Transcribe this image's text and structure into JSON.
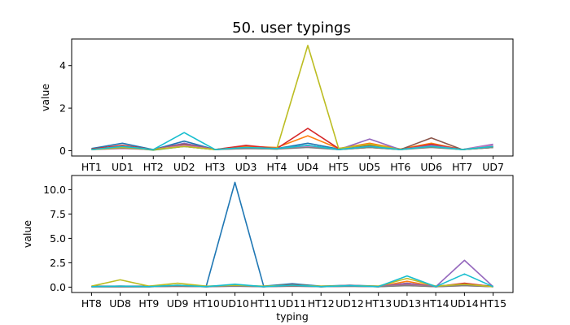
{
  "chart_data": {
    "type": "line",
    "title": "50. user typings",
    "palette": [
      "#1f77b4",
      "#ff7f0e",
      "#2ca02c",
      "#d62728",
      "#9467bd",
      "#8c564b",
      "#e377c2",
      "#7f7f7f",
      "#bcbd22",
      "#17becf"
    ],
    "panels": [
      {
        "categories": [
          "HT1",
          "UD1",
          "HT2",
          "UD2",
          "HT3",
          "UD3",
          "HT4",
          "UD4",
          "HT5",
          "UD5",
          "HT6",
          "UD6",
          "HT7",
          "UD7"
        ],
        "ylabel": "value",
        "xlabel": "",
        "ylim": [
          -0.25,
          5.25
        ],
        "yticks": [
          0,
          2,
          4
        ],
        "ytick_labels": [
          "0",
          "2",
          "4"
        ],
        "series": [
          {
            "values": [
              0.1,
              0.35,
              0.05,
              0.45,
              0.05,
              0.15,
              0.1,
              0.35,
              0.08,
              0.2,
              0.05,
              0.25,
              0.05,
              0.15
            ]
          },
          {
            "values": [
              0.05,
              0.2,
              0.05,
              0.25,
              0.05,
              0.2,
              0.15,
              0.7,
              0.1,
              0.35,
              0.08,
              0.35,
              0.05,
              0.2
            ]
          },
          {
            "values": [
              0.05,
              0.15,
              0.03,
              0.2,
              0.05,
              0.12,
              0.08,
              0.25,
              0.05,
              0.15,
              0.05,
              0.2,
              0.05,
              0.15
            ]
          },
          {
            "values": [
              0.08,
              0.25,
              0.05,
              0.3,
              0.05,
              0.25,
              0.1,
              1.05,
              0.1,
              0.25,
              0.05,
              0.3,
              0.05,
              0.2
            ]
          },
          {
            "values": [
              0.05,
              0.2,
              0.05,
              0.35,
              0.05,
              0.15,
              0.1,
              0.25,
              0.05,
              0.55,
              0.05,
              0.25,
              0.05,
              0.3
            ]
          },
          {
            "values": [
              0.05,
              0.15,
              0.05,
              0.3,
              0.05,
              0.15,
              0.1,
              0.2,
              0.05,
              0.25,
              0.05,
              0.6,
              0.05,
              0.2
            ]
          },
          {
            "values": [
              0.05,
              0.1,
              0.05,
              0.25,
              0.05,
              0.1,
              0.1,
              0.2,
              0.05,
              0.2,
              0.05,
              0.2,
              0.05,
              0.25
            ]
          },
          {
            "values": [
              0.05,
              0.12,
              0.05,
              0.2,
              0.05,
              0.1,
              0.08,
              0.15,
              0.05,
              0.15,
              0.05,
              0.15,
              0.05,
              0.15
            ]
          },
          {
            "values": [
              0.05,
              0.15,
              0.05,
              0.2,
              0.05,
              0.15,
              0.1,
              4.95,
              0.1,
              0.3,
              0.05,
              0.2,
              0.05,
              0.2
            ]
          },
          {
            "values": [
              0.05,
              0.2,
              0.05,
              0.85,
              0.05,
              0.15,
              0.1,
              0.25,
              0.05,
              0.2,
              0.05,
              0.2,
              0.05,
              0.2
            ]
          }
        ]
      },
      {
        "categories": [
          "HT8",
          "UD8",
          "HT9",
          "UD9",
          "HT10",
          "UD10",
          "HT11",
          "UD11",
          "HT12",
          "UD12",
          "HT13",
          "UD13",
          "HT14",
          "UD14",
          "HT15"
        ],
        "ylabel": "value",
        "xlabel": "typing",
        "ylim": [
          -0.55,
          11.45
        ],
        "yticks": [
          0,
          2.5,
          5,
          7.5,
          10
        ],
        "ytick_labels": [
          "0.0",
          "2.5",
          "5.0",
          "7.5",
          "10.0"
        ],
        "series": [
          {
            "values": [
              0.1,
              0.1,
              0.1,
              0.15,
              0.1,
              10.75,
              0.1,
              0.35,
              0.1,
              0.2,
              0.1,
              0.3,
              0.1,
              0.3,
              0.1
            ]
          },
          {
            "values": [
              0.05,
              0.1,
              0.05,
              0.2,
              0.05,
              0.25,
              0.05,
              0.2,
              0.05,
              0.15,
              0.05,
              0.6,
              0.05,
              0.25,
              0.05
            ]
          },
          {
            "values": [
              0.05,
              0.05,
              0.05,
              0.1,
              0.05,
              0.15,
              0.05,
              0.15,
              0.05,
              0.1,
              0.05,
              0.3,
              0.05,
              0.2,
              0.05
            ]
          },
          {
            "values": [
              0.05,
              0.05,
              0.05,
              0.15,
              0.05,
              0.2,
              0.05,
              0.25,
              0.05,
              0.15,
              0.05,
              0.4,
              0.05,
              0.4,
              0.05
            ]
          },
          {
            "values": [
              0.05,
              0.1,
              0.05,
              0.15,
              0.05,
              0.2,
              0.05,
              0.2,
              0.05,
              0.2,
              0.05,
              0.4,
              0.05,
              2.75,
              0.05
            ]
          },
          {
            "values": [
              0.05,
              0.05,
              0.05,
              0.1,
              0.05,
              0.15,
              0.05,
              0.15,
              0.05,
              0.1,
              0.05,
              0.25,
              0.05,
              0.2,
              0.05
            ]
          },
          {
            "values": [
              0.05,
              0.05,
              0.05,
              0.1,
              0.05,
              0.1,
              0.05,
              0.1,
              0.05,
              0.1,
              0.05,
              0.2,
              0.05,
              0.15,
              0.05
            ]
          },
          {
            "values": [
              0.05,
              0.05,
              0.05,
              0.1,
              0.05,
              0.1,
              0.05,
              0.1,
              0.05,
              0.1,
              0.05,
              0.15,
              0.05,
              0.15,
              0.05
            ]
          },
          {
            "values": [
              0.1,
              0.75,
              0.1,
              0.4,
              0.1,
              0.2,
              0.1,
              0.2,
              0.1,
              0.15,
              0.1,
              0.9,
              0.1,
              0.3,
              0.05
            ]
          },
          {
            "values": [
              0.05,
              0.1,
              0.05,
              0.2,
              0.05,
              0.3,
              0.05,
              0.2,
              0.05,
              0.15,
              0.05,
              1.15,
              0.05,
              1.35,
              0.05
            ]
          }
        ]
      }
    ]
  }
}
